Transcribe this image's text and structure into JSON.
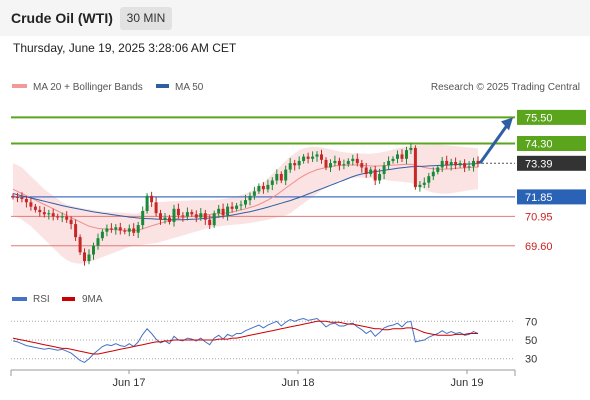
{
  "header": {
    "title": "Crude Oil (WTI)",
    "timeframe": "30 MIN",
    "datetime": "Thursday, June 19, 2025 3:28:06 AM CET"
  },
  "legend": {
    "ma_bb": "MA 20 + Bollinger Bands",
    "ma50": "MA 50",
    "credit": "Research © 2025 Trading Central"
  },
  "rsi_legend": {
    "rsi": "RSI",
    "ma": "9MA"
  },
  "colors": {
    "green": "#5aa51c",
    "blue": "#4472c4",
    "red": "#e07a7a",
    "dark": "#333333",
    "arrow": "#2e5fa3",
    "rsi_line": "#4472c4",
    "rsi_ma": "#cc0000"
  },
  "chart_data": [
    {
      "type": "candlestick",
      "ylim": [
        67.8,
        76.3
      ],
      "x_ticks": [
        "Jun 17",
        "Jun 18",
        "Jun 19"
      ],
      "levels": [
        {
          "label": "75.50",
          "value": 75.5,
          "style": "green-solid"
        },
        {
          "label": "74.30",
          "value": 74.3,
          "style": "green-solid"
        },
        {
          "label": "73.39",
          "value": 73.39,
          "style": "current-dotted"
        },
        {
          "label": "71.85",
          "value": 71.85,
          "style": "blue-solid"
        },
        {
          "label": "70.95",
          "value": 70.95,
          "style": "red-thin"
        },
        {
          "label": "69.60",
          "value": 69.6,
          "style": "red-thin"
        }
      ],
      "closes": [
        71.85,
        71.82,
        71.75,
        71.6,
        71.4,
        71.25,
        71.15,
        71.05,
        71.1,
        70.95,
        70.9,
        70.95,
        70.8,
        70.6,
        70.0,
        69.3,
        68.9,
        69.2,
        69.6,
        69.95,
        70.25,
        70.4,
        70.35,
        70.45,
        70.3,
        70.25,
        70.4,
        70.2,
        70.55,
        71.2,
        71.9,
        71.6,
        71.1,
        70.8,
        70.9,
        70.7,
        71.3,
        71.0,
        70.95,
        71.15,
        71.05,
        70.9,
        71.1,
        70.8,
        70.55,
        71.1,
        71.3,
        71.0,
        71.4,
        71.3,
        71.45,
        71.5,
        71.7,
        71.9,
        72.1,
        72.35,
        72.2,
        72.4,
        72.6,
        72.9,
        72.6,
        73.1,
        73.4,
        73.3,
        73.5,
        73.7,
        73.6,
        73.7,
        73.8,
        73.55,
        73.2,
        73.4,
        73.5,
        73.3,
        73.35,
        73.5,
        73.6,
        73.4,
        73.2,
        72.9,
        73.1,
        72.6,
        72.9,
        73.3,
        73.5,
        73.6,
        73.8,
        73.6,
        74.0,
        74.1,
        72.3,
        72.4,
        72.5,
        72.8,
        73.0,
        73.2,
        73.5,
        73.3,
        73.45,
        73.3,
        73.4,
        73.2,
        73.25,
        73.5,
        73.39
      ],
      "ma20": [
        72.2,
        72.1,
        72.0,
        71.9,
        71.8,
        71.7,
        71.6,
        71.5,
        71.4,
        71.3,
        71.2,
        71.1,
        71.0,
        70.9,
        70.8,
        70.7,
        70.6,
        70.5,
        70.45,
        70.4,
        70.38,
        70.36,
        70.35,
        70.34,
        70.33,
        70.32,
        70.31,
        70.3,
        70.32,
        70.38,
        70.45,
        70.52,
        70.58,
        70.64,
        70.7,
        70.76,
        70.82,
        70.86,
        70.9,
        70.93,
        70.96,
        70.98,
        71.0,
        71.02,
        71.04,
        71.06,
        71.08,
        71.1,
        71.12,
        71.15,
        71.2,
        71.25,
        71.3,
        71.36,
        71.42,
        71.5,
        71.6,
        71.7,
        71.82,
        71.95,
        72.1,
        72.25,
        72.4,
        72.55,
        72.7,
        72.82,
        72.93,
        73.02,
        73.1,
        73.15,
        73.2,
        73.24,
        73.27,
        73.29,
        73.3,
        73.31,
        73.32,
        73.32,
        73.3,
        73.28,
        73.27,
        73.26,
        73.27,
        73.28,
        73.3,
        73.31,
        73.32,
        73.33,
        73.34,
        73.35,
        73.3,
        73.25,
        73.2,
        73.16,
        73.14,
        73.13,
        73.12,
        73.13,
        73.14,
        73.16,
        73.17,
        73.18,
        73.2,
        73.21,
        73.22
      ],
      "bb_upper": [
        73.4,
        73.3,
        73.2,
        73.0,
        72.8,
        72.6,
        72.4,
        72.2,
        72.05,
        71.9,
        71.75,
        71.6,
        71.5,
        71.45,
        71.4,
        71.35,
        71.3,
        71.28,
        71.25,
        71.2,
        71.18,
        71.16,
        71.15,
        71.14,
        71.13,
        71.12,
        71.1,
        71.08,
        71.1,
        71.2,
        71.4,
        71.55,
        71.6,
        71.62,
        71.63,
        71.64,
        71.65,
        71.66,
        71.67,
        71.68,
        71.69,
        71.7,
        71.7,
        71.7,
        71.7,
        71.7,
        71.72,
        71.75,
        71.78,
        71.82,
        71.87,
        71.93,
        72.0,
        72.1,
        72.2,
        72.35,
        72.5,
        72.7,
        72.9,
        73.1,
        73.3,
        73.5,
        73.7,
        73.85,
        74.0,
        74.08,
        74.12,
        74.15,
        74.15,
        74.12,
        74.08,
        74.03,
        73.98,
        73.93,
        73.9,
        73.88,
        73.86,
        73.85,
        73.84,
        73.83,
        73.83,
        73.85,
        73.88,
        73.92,
        73.97,
        74.02,
        74.08,
        74.12,
        74.16,
        74.2,
        74.22,
        74.23,
        74.24,
        74.25,
        74.25,
        74.25,
        74.24,
        74.22,
        74.2,
        74.18,
        74.16,
        74.14,
        74.12,
        74.1,
        74.08
      ],
      "bb_lower": [
        71.0,
        70.9,
        70.8,
        70.65,
        70.5,
        70.3,
        70.1,
        69.9,
        69.7,
        69.5,
        69.3,
        69.1,
        68.95,
        68.85,
        68.8,
        68.78,
        68.8,
        68.85,
        68.92,
        69.0,
        69.08,
        69.16,
        69.24,
        69.32,
        69.4,
        69.48,
        69.55,
        69.6,
        69.62,
        69.65,
        69.68,
        69.7,
        69.73,
        69.78,
        69.84,
        69.9,
        69.96,
        70.02,
        70.08,
        70.14,
        70.2,
        70.26,
        70.32,
        70.38,
        70.42,
        70.46,
        70.5,
        70.52,
        70.54,
        70.56,
        70.58,
        70.6,
        70.62,
        70.65,
        70.68,
        70.72,
        70.76,
        70.8,
        70.85,
        70.9,
        70.95,
        71.0,
        71.1,
        71.25,
        71.4,
        71.55,
        71.7,
        71.85,
        72.0,
        72.15,
        72.3,
        72.4,
        72.5,
        72.6,
        72.65,
        72.7,
        72.72,
        72.74,
        72.74,
        72.72,
        72.7,
        72.68,
        72.66,
        72.64,
        72.6,
        72.58,
        72.56,
        72.54,
        72.52,
        72.5,
        72.4,
        72.3,
        72.2,
        72.1,
        72.05,
        72.02,
        72.0,
        72.0,
        72.02,
        72.05,
        72.08,
        72.12,
        72.15,
        72.18,
        72.2
      ],
      "ma50": [
        72.0,
        71.95,
        71.9,
        71.85,
        71.8,
        71.75,
        71.7,
        71.65,
        71.6,
        71.55,
        71.5,
        71.45,
        71.4,
        71.36,
        71.32,
        71.28,
        71.24,
        71.2,
        71.16,
        71.13,
        71.1,
        71.07,
        71.04,
        71.01,
        70.98,
        70.95,
        70.92,
        70.9,
        70.88,
        70.86,
        70.85,
        70.84,
        70.83,
        70.82,
        70.81,
        70.8,
        70.8,
        70.8,
        70.8,
        70.81,
        70.82,
        70.83,
        70.84,
        70.86,
        70.88,
        70.9,
        70.92,
        70.95,
        70.98,
        71.01,
        71.05,
        71.09,
        71.13,
        71.17,
        71.22,
        71.27,
        71.32,
        71.38,
        71.44,
        71.5,
        71.56,
        71.62,
        71.68,
        71.75,
        71.82,
        71.9,
        71.98,
        72.06,
        72.14,
        72.22,
        72.3,
        72.38,
        72.46,
        72.54,
        72.62,
        72.7,
        72.78,
        72.85,
        72.9,
        72.94,
        72.98,
        73.01,
        73.04,
        73.07,
        73.1,
        73.13,
        73.16,
        73.19,
        73.21,
        73.23,
        73.24,
        73.25,
        73.26,
        73.27,
        73.28,
        73.29,
        73.3,
        73.31,
        73.32,
        73.33,
        73.34,
        73.35,
        73.36,
        73.37,
        73.38
      ],
      "title": "",
      "xlabel": "",
      "ylabel": ""
    },
    {
      "type": "line",
      "ylim": [
        20,
        80
      ],
      "y_ticks": [
        "70",
        "50",
        "30"
      ],
      "series": [
        {
          "name": "RSI",
          "values": [
            49,
            48,
            46,
            44,
            43,
            42,
            41,
            40,
            41,
            40,
            39,
            40,
            38,
            36,
            32,
            28,
            26,
            30,
            35,
            39,
            43,
            45,
            44,
            46,
            44,
            43,
            46,
            43,
            48,
            56,
            62,
            57,
            51,
            47,
            49,
            46,
            54,
            50,
            49,
            52,
            51,
            49,
            52,
            48,
            45,
            52,
            55,
            51,
            56,
            54,
            57,
            57,
            60,
            62,
            64,
            66,
            63,
            66,
            68,
            70,
            65,
            69,
            72,
            70,
            72,
            73,
            71,
            72,
            73,
            69,
            64,
            67,
            68,
            65,
            65,
            67,
            68,
            64,
            61,
            57,
            60,
            54,
            58,
            63,
            65,
            66,
            68,
            64,
            69,
            70,
            48,
            49,
            50,
            53,
            55,
            57,
            60,
            57,
            59,
            57,
            58,
            55,
            56,
            59,
            57
          ]
        },
        {
          "name": "9MA",
          "values": [
            52,
            51,
            50,
            49,
            48,
            47,
            46,
            45,
            44,
            43,
            42,
            41,
            41,
            40,
            39,
            38,
            37,
            36,
            35,
            35,
            36,
            37,
            38,
            39,
            40,
            41,
            42,
            43,
            44,
            45,
            46,
            47,
            48,
            48,
            49,
            49,
            50,
            50,
            50,
            50,
            50,
            50,
            50,
            50,
            50,
            50,
            51,
            51,
            51,
            52,
            52,
            53,
            54,
            55,
            56,
            57,
            58,
            59,
            60,
            61,
            62,
            63,
            64,
            65,
            66,
            67,
            68,
            69,
            70,
            70,
            70,
            69,
            69,
            69,
            68,
            67,
            67,
            66,
            65,
            64,
            63,
            62,
            62,
            61,
            61,
            62,
            62,
            62,
            63,
            63,
            62,
            60,
            58,
            57,
            56,
            55,
            55,
            55,
            55,
            56,
            56,
            56,
            57,
            57,
            57
          ]
        }
      ],
      "title": "",
      "xlabel": "",
      "ylabel": ""
    }
  ]
}
